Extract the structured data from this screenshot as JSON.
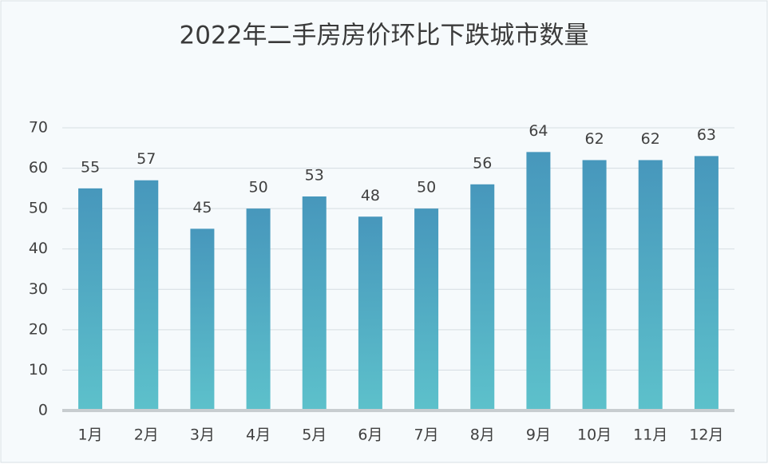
{
  "chart_data": {
    "type": "bar",
    "title": "2022年二手房房价环比下跌城市数量",
    "categories": [
      "1月",
      "2月",
      "3月",
      "4月",
      "5月",
      "6月",
      "7月",
      "8月",
      "9月",
      "10月",
      "11月",
      "12月"
    ],
    "values": [
      55,
      57,
      45,
      50,
      53,
      48,
      50,
      56,
      64,
      62,
      62,
      63
    ],
    "color": [
      "#4797bc",
      "#5dc1cb"
    ],
    "ylim": [
      0,
      70
    ],
    "yticks": [
      0,
      10,
      20,
      30,
      40,
      50,
      60,
      70
    ],
    "grid": true
  }
}
